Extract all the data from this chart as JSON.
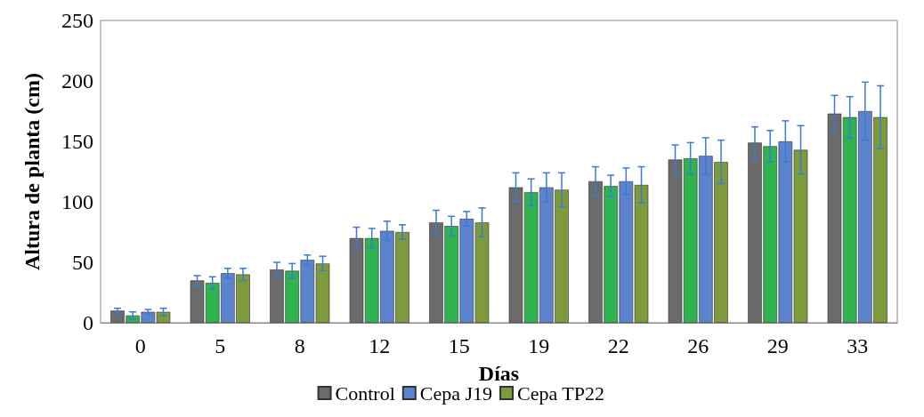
{
  "chart_data": {
    "type": "bar",
    "xlabel": "Días",
    "ylabel": "Altura de planta (cm)",
    "categories": [
      "0",
      "5",
      "8",
      "12",
      "15",
      "19",
      "22",
      "26",
      "29",
      "33"
    ],
    "series": [
      {
        "name": "Control",
        "color": "#6b6b6b",
        "values": [
          10,
          35,
          44,
          70,
          83,
          112,
          117,
          135,
          149,
          173
        ],
        "errors": [
          2,
          4,
          6,
          9,
          10,
          12,
          12,
          12,
          13,
          15
        ]
      },
      {
        "color": "#2eb34f",
        "values": [
          6,
          33,
          43,
          70,
          80,
          108,
          113,
          136,
          146,
          170
        ],
        "errors": [
          3,
          5,
          6,
          8,
          8,
          11,
          9,
          13,
          13,
          17
        ]
      },
      {
        "name": "Cepa J19",
        "color": "#5b84cc",
        "values": [
          9,
          41,
          52,
          76,
          86,
          112,
          117,
          138,
          150,
          175
        ],
        "errors": [
          2,
          4,
          4,
          8,
          6,
          12,
          11,
          15,
          17,
          24
        ]
      },
      {
        "name": "Cepa TP22",
        "color": "#7d9b3c",
        "values": [
          9,
          40,
          49,
          75,
          83,
          110,
          114,
          133,
          143,
          170
        ],
        "errors": [
          3,
          5,
          6,
          6,
          12,
          14,
          15,
          18,
          20,
          26
        ]
      }
    ],
    "ylim": [
      0,
      250
    ],
    "yticks": [
      0,
      50,
      100,
      150,
      200,
      250
    ],
    "legend": "bottom",
    "grid": false
  }
}
